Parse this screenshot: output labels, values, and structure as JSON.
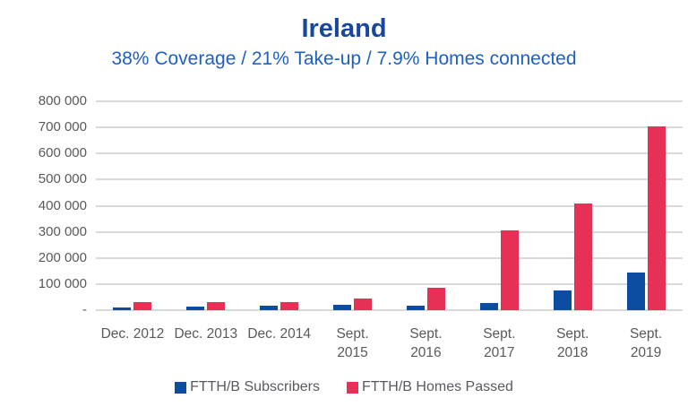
{
  "colors": {
    "title": "#1A479E",
    "subtitle": "#2060C0",
    "axis_labels": "#595959",
    "gridline": "#D9D9D9",
    "legend_text": "#595960",
    "series_subscribers": "#0C4DA2",
    "series_homes_passed": "#E73056",
    "background": "#FFFFFF"
  },
  "chart_data": {
    "type": "bar",
    "title": "Ireland",
    "subtitle": "38% Coverage / 21% Take-up / 7.9% Homes connected",
    "categories": [
      "Dec. 2012",
      "Dec. 2013",
      "Dec. 2014",
      "Sept.\n2015",
      "Sept.\n2016",
      "Sept.\n2017",
      "Sept.\n2018",
      "Sept.\n2019"
    ],
    "series": [
      {
        "name": "FTTH/B Subscribers",
        "color": "#0C4DA2",
        "values": [
          12000,
          15000,
          18000,
          20000,
          18000,
          29000,
          75000,
          145000
        ]
      },
      {
        "name": "FTTH/B Homes Passed",
        "color": "#E73056",
        "values": [
          30000,
          31000,
          32000,
          44000,
          85000,
          305000,
          410000,
          703000
        ]
      }
    ],
    "ylim": [
      0,
      800000
    ],
    "ytick_interval": 100000,
    "ytick_labels": [
      "-",
      "100 000",
      "200 000",
      "300 000",
      "400 000",
      "500 000",
      "600 000",
      "700 000",
      "800 000"
    ],
    "grid": true,
    "legend_position": "bottom"
  }
}
